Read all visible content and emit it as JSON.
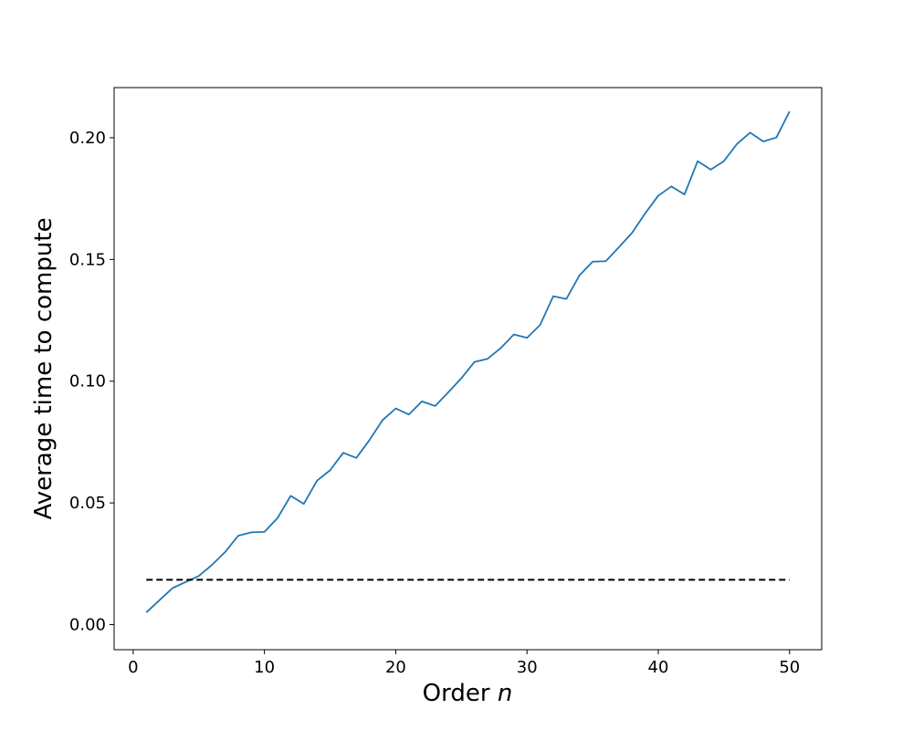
{
  "chart_data": {
    "type": "line",
    "xlabel": "Order",
    "xlabel_var": "n",
    "ylabel": "Average time to compute",
    "xlim": [
      -1.45,
      52.45
    ],
    "ylim": [
      -0.0103,
      0.2206
    ],
    "xticks": [
      0,
      10,
      20,
      30,
      40,
      50
    ],
    "yticks": [
      0.0,
      0.05,
      0.1,
      0.15,
      0.2
    ],
    "xtick_labels": [
      "0",
      "10",
      "20",
      "30",
      "40",
      "50"
    ],
    "ytick_labels": [
      "0.00",
      "0.05",
      "0.10",
      "0.15",
      "0.20"
    ],
    "grid": false,
    "series": [
      {
        "style": "solid",
        "color": "#1f77b4",
        "x": [
          1,
          2,
          3,
          4,
          5,
          6,
          7,
          8,
          9,
          10,
          11,
          12,
          13,
          14,
          15,
          16,
          17,
          18,
          19,
          20,
          21,
          22,
          23,
          24,
          25,
          26,
          27,
          28,
          29,
          30,
          31,
          32,
          33,
          34,
          35,
          36,
          37,
          38,
          39,
          40,
          41,
          42,
          43,
          44,
          45,
          46,
          47,
          48,
          49,
          50
        ],
        "y": [
          0.005,
          0.01,
          0.015,
          0.0175,
          0.02,
          0.0245,
          0.0298,
          0.0365,
          0.0379,
          0.0381,
          0.0438,
          0.0529,
          0.0496,
          0.0591,
          0.0634,
          0.0706,
          0.0685,
          0.0758,
          0.084,
          0.0888,
          0.0863,
          0.0917,
          0.0898,
          0.0954,
          0.1012,
          0.1079,
          0.1092,
          0.1136,
          0.1192,
          0.1178,
          0.1231,
          0.1349,
          0.1338,
          0.1435,
          0.1491,
          0.1493,
          0.155,
          0.1609,
          0.1689,
          0.1762,
          0.18,
          0.1767,
          0.1904,
          0.1869,
          0.1904,
          0.1975,
          0.2021,
          0.1985,
          0.2001,
          0.2108
        ]
      },
      {
        "style": "dashed",
        "color": "#000000",
        "x": [
          1,
          50
        ],
        "y": [
          0.0184,
          0.0184
        ]
      }
    ]
  }
}
